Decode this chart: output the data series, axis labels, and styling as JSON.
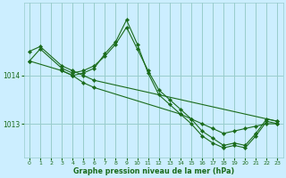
{
  "title": "Graphe pression niveau de la mer (hPa)",
  "bg_color": "#cceeff",
  "grid_color": "#99cccc",
  "line_color": "#1a6b1a",
  "xlim": [
    -0.5,
    23.5
  ],
  "ylim": [
    1012.3,
    1015.5
  ],
  "yticks": [
    1013,
    1014
  ],
  "xticks": [
    0,
    1,
    2,
    3,
    4,
    5,
    6,
    7,
    8,
    9,
    10,
    11,
    12,
    13,
    14,
    15,
    16,
    17,
    18,
    19,
    20,
    21,
    22,
    23
  ],
  "series": [
    {
      "x": [
        0,
        1,
        3,
        4,
        5,
        6,
        23
      ],
      "y": [
        1014.5,
        1014.6,
        1014.2,
        1014.1,
        1014.0,
        1013.9,
        1013.05
      ]
    },
    {
      "x": [
        0,
        3,
        4,
        5,
        6,
        14,
        15,
        16,
        17,
        18,
        19,
        20,
        21,
        22,
        23
      ],
      "y": [
        1014.3,
        1014.1,
        1014.0,
        1013.85,
        1013.75,
        1013.2,
        1013.1,
        1013.0,
        1012.9,
        1012.8,
        1012.85,
        1012.9,
        1012.95,
        1013.0,
        1013.0
      ]
    },
    {
      "x": [
        0,
        1,
        3,
        4,
        5,
        6,
        7,
        8,
        9,
        10,
        11,
        12,
        13,
        14,
        15,
        16,
        17,
        18,
        19,
        20,
        21,
        22,
        23
      ],
      "y": [
        1014.3,
        1014.55,
        1014.15,
        1014.05,
        1014.1,
        1014.2,
        1014.4,
        1014.65,
        1015.0,
        1014.55,
        1014.1,
        1013.7,
        1013.5,
        1013.3,
        1013.1,
        1012.85,
        1012.7,
        1012.55,
        1012.6,
        1012.55,
        1012.8,
        1013.1,
        1013.05
      ]
    },
    {
      "x": [
        3,
        4,
        5,
        6,
        7,
        8,
        9,
        10,
        11,
        12,
        13,
        14,
        15,
        16,
        17,
        18,
        19,
        20,
        21,
        22,
        23
      ],
      "y": [
        1014.1,
        1014.0,
        1014.05,
        1014.15,
        1014.45,
        1014.7,
        1015.15,
        1014.65,
        1014.05,
        1013.6,
        1013.4,
        1013.2,
        1013.0,
        1012.75,
        1012.6,
        1012.5,
        1012.55,
        1012.5,
        1012.75,
        1013.05,
        1013.0
      ]
    }
  ]
}
